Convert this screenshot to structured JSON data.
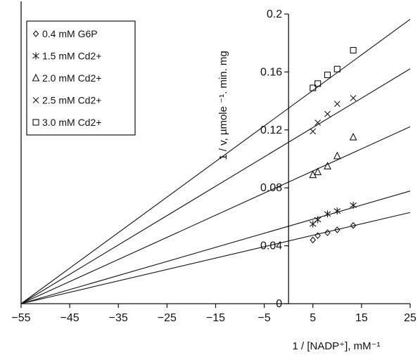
{
  "chart_data": {
    "type": "scatter",
    "title": "",
    "xlabel": "1 / [NADP⁺], mM⁻¹",
    "ylabel": "1 / v, µmole ⁻¹. min. mg",
    "xlim": [
      -55,
      25
    ],
    "ylim": [
      0,
      0.2
    ],
    "x_ticks": [
      "-55",
      "-45",
      "-35",
      "-25",
      "-15",
      "-5",
      "5",
      "15",
      "25"
    ],
    "y_ticks": [
      "0",
      "0.04",
      "0.08",
      "0.12",
      "0.16",
      "0.2"
    ],
    "legend_position": "top-left",
    "grid": false,
    "series": [
      {
        "name": "0.4 mM G6P",
        "marker": "diamond",
        "x": [
          5,
          6,
          8,
          10,
          13.3
        ],
        "y": [
          0.044,
          0.047,
          0.049,
          0.051,
          0.054
        ],
        "fit": {
          "x_intercept": -55,
          "y_at_x0": 0.0433
        }
      },
      {
        "name": "1.5 mM Cd2+",
        "marker": "star",
        "x": [
          5,
          6,
          8,
          10,
          13.3
        ],
        "y": [
          0.055,
          0.058,
          0.062,
          0.064,
          0.068
        ],
        "fit": {
          "x_intercept": -55,
          "y_at_x0": 0.0535
        }
      },
      {
        "name": "2.0 mM Cd2+",
        "marker": "triangle",
        "x": [
          5,
          6,
          8,
          10,
          13.3
        ],
        "y": [
          0.089,
          0.091,
          0.095,
          0.102,
          0.115
        ],
        "fit": {
          "x_intercept": -55,
          "y_at_x0": 0.084
        }
      },
      {
        "name": "2.5 mM Cd2+",
        "marker": "x",
        "x": [
          5,
          6,
          8,
          10,
          13.3
        ],
        "y": [
          0.119,
          0.125,
          0.131,
          0.138,
          0.142
        ],
        "fit": {
          "x_intercept": -55,
          "y_at_x0": 0.1115
        }
      },
      {
        "name": "3.0 mM Cd2+",
        "marker": "square",
        "x": [
          5,
          6,
          8,
          10,
          13.3
        ],
        "y": [
          0.149,
          0.152,
          0.158,
          0.162,
          0.175
        ],
        "fit": {
          "x_intercept": -55,
          "y_at_x0": 0.135
        }
      }
    ]
  }
}
